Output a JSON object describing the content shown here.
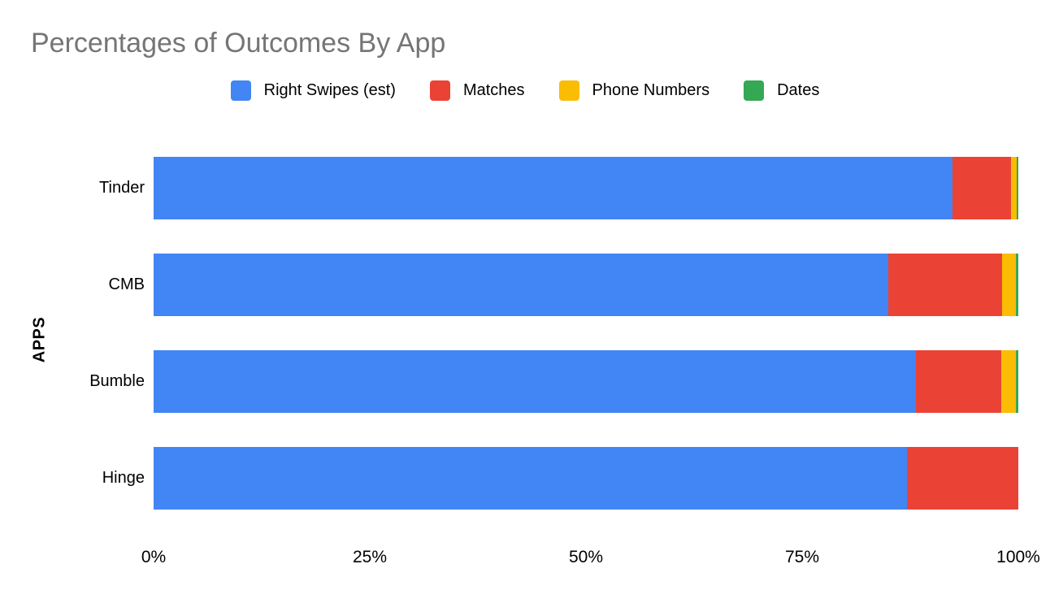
{
  "styles": {
    "background": "#ffffff",
    "title_color": "#757575",
    "text_color": "#000000"
  },
  "chart_data": {
    "type": "bar",
    "orientation": "horizontal",
    "stacked": true,
    "title": "Percentages of Outcomes By App",
    "ylabel": "APPS",
    "xlabel": "",
    "categories": [
      "Tinder",
      "CMB",
      "Bumble",
      "Hinge"
    ],
    "series": [
      {
        "name": "Right Swipes (est)",
        "color": "#4285F4",
        "values": [
          92.4,
          85.0,
          88.2,
          87.1
        ]
      },
      {
        "name": "Matches",
        "color": "#EA4335",
        "values": [
          6.8,
          13.1,
          9.8,
          12.9
        ]
      },
      {
        "name": "Phone Numbers",
        "color": "#FBBC04",
        "values": [
          0.6,
          1.6,
          1.7,
          0
        ]
      },
      {
        "name": "Dates",
        "color": "#34A853",
        "values": [
          0.2,
          0.3,
          0.3,
          0
        ]
      }
    ],
    "xlim": [
      0,
      100
    ],
    "x_tick_labels": [
      "0%",
      "25%",
      "50%",
      "75%",
      "100%"
    ],
    "legend_position": "top",
    "grid": false
  }
}
